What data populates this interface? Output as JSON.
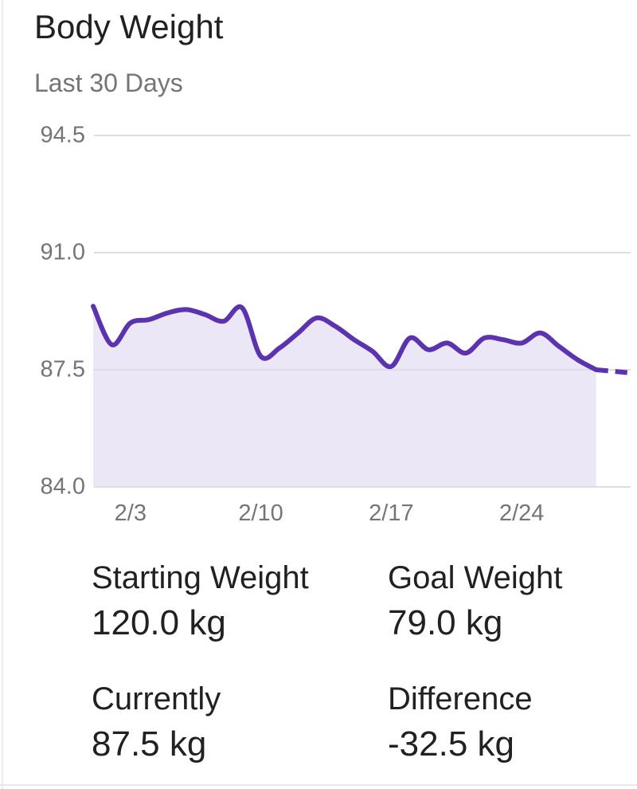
{
  "header": {
    "title": "Body Weight",
    "subtitle": "Last 30 Days"
  },
  "chart_data": {
    "type": "area",
    "title": "Body Weight",
    "subtitle": "Last 30 Days",
    "unit": "kg",
    "ylim": [
      84.0,
      94.5
    ],
    "y_ticks": [
      {
        "label": "94.5",
        "value": 94.5
      },
      {
        "label": "91.0",
        "value": 91.0
      },
      {
        "label": "87.5",
        "value": 87.5
      },
      {
        "label": "84.0",
        "value": 84.0
      }
    ],
    "x_ticks": [
      {
        "label": "2/3",
        "day": 2
      },
      {
        "label": "2/10",
        "day": 9
      },
      {
        "label": "2/17",
        "day": 16
      },
      {
        "label": "2/24",
        "day": 23
      }
    ],
    "grid": true,
    "legend": "none",
    "series": [
      {
        "name": "weight",
        "style": "solid",
        "filled": true,
        "points": [
          {
            "date": "2/1",
            "day": 0,
            "value": 89.4
          },
          {
            "date": "2/2",
            "day": 1,
            "value": 88.25
          },
          {
            "date": "2/3",
            "day": 2,
            "value": 88.9
          },
          {
            "date": "2/4",
            "day": 3,
            "value": 89.0
          },
          {
            "date": "2/5",
            "day": 4,
            "value": 89.2
          },
          {
            "date": "2/6",
            "day": 5,
            "value": 89.3
          },
          {
            "date": "2/7",
            "day": 6,
            "value": 89.15
          },
          {
            "date": "2/8",
            "day": 7,
            "value": 88.95
          },
          {
            "date": "2/9",
            "day": 8,
            "value": 89.35
          },
          {
            "date": "2/10",
            "day": 9,
            "value": 87.9
          },
          {
            "date": "2/11",
            "day": 10,
            "value": 88.15
          },
          {
            "date": "2/12",
            "day": 11,
            "value": 88.6
          },
          {
            "date": "2/13",
            "day": 12,
            "value": 89.05
          },
          {
            "date": "2/14",
            "day": 13,
            "value": 88.8
          },
          {
            "date": "2/15",
            "day": 14,
            "value": 88.4
          },
          {
            "date": "2/16",
            "day": 15,
            "value": 88.05
          },
          {
            "date": "2/17",
            "day": 16,
            "value": 87.6
          },
          {
            "date": "2/18",
            "day": 17,
            "value": 88.45
          },
          {
            "date": "2/19",
            "day": 18,
            "value": 88.1
          },
          {
            "date": "2/20",
            "day": 19,
            "value": 88.3
          },
          {
            "date": "2/21",
            "day": 20,
            "value": 88.0
          },
          {
            "date": "2/22",
            "day": 21,
            "value": 88.45
          },
          {
            "date": "2/23",
            "day": 22,
            "value": 88.4
          },
          {
            "date": "2/24",
            "day": 23,
            "value": 88.3
          },
          {
            "date": "2/25",
            "day": 24,
            "value": 88.6
          },
          {
            "date": "2/26",
            "day": 25,
            "value": 88.2
          },
          {
            "date": "2/27",
            "day": 26,
            "value": 87.8
          },
          {
            "date": "2/28",
            "day": 27,
            "value": 87.5
          }
        ]
      },
      {
        "name": "projection",
        "style": "dashed",
        "filled": false,
        "points": [
          {
            "date": "2/28",
            "day": 27,
            "value": 87.5
          },
          {
            "date": "3/1",
            "day": 28,
            "value": 87.45
          },
          {
            "date": "3/2",
            "day": 29,
            "value": 87.4
          }
        ]
      }
    ],
    "colors": {
      "line": "#5b33ae",
      "fill": "#ece7f6",
      "grid": "#dedee1",
      "axis_text": "#757575"
    }
  },
  "stats": [
    {
      "label": "Starting Weight",
      "value": "120.0 kg"
    },
    {
      "label": "Goal Weight",
      "value": "79.0 kg"
    },
    {
      "label": "Currently",
      "value": "87.5 kg"
    },
    {
      "label": "Difference",
      "value": "-32.5 kg"
    }
  ]
}
